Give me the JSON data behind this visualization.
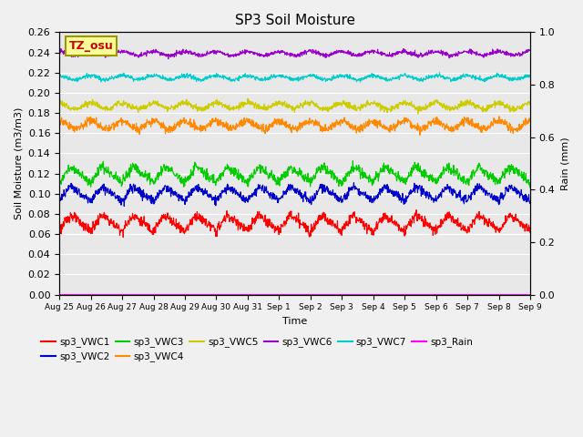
{
  "title": "SP3 Soil Moisture",
  "xlabel": "Time",
  "ylabel_left": "Soil Moisture (m3/m3)",
  "ylabel_right": "Rain (mm)",
  "ylim_left": [
    0.0,
    0.26
  ],
  "ylim_right": [
    0.0,
    1.0
  ],
  "background_color": "#f0f0f0",
  "plot_bg_color": "#e8e8e8",
  "series": [
    {
      "name": "sp3_VWC1",
      "color": "#ff0000",
      "mean": 0.071,
      "amplitude": 0.008,
      "sharp": true
    },
    {
      "name": "sp3_VWC2",
      "color": "#0000cc",
      "mean": 0.1,
      "amplitude": 0.007,
      "sharp": true
    },
    {
      "name": "sp3_VWC3",
      "color": "#00cc00",
      "mean": 0.119,
      "amplitude": 0.008,
      "sharp": true
    },
    {
      "name": "sp3_VWC4",
      "color": "#ff8800",
      "mean": 0.168,
      "amplitude": 0.004,
      "sharp": false
    },
    {
      "name": "sp3_VWC5",
      "color": "#cccc00",
      "mean": 0.187,
      "amplitude": 0.003,
      "sharp": false
    },
    {
      "name": "sp3_VWC6",
      "color": "#9900cc",
      "mean": 0.239,
      "amplitude": 0.002,
      "sharp": false
    },
    {
      "name": "sp3_VWC7",
      "color": "#00cccc",
      "mean": 0.215,
      "amplitude": 0.002,
      "sharp": false
    }
  ],
  "rain": {
    "name": "sp3_Rain",
    "color": "#ff00ff"
  },
  "n_days": 15,
  "xtick_labels": [
    "Aug 25",
    "Aug 26",
    "Aug 27",
    "Aug 28",
    "Aug 29",
    "Aug 30",
    "Aug 31",
    "Sep 1",
    "Sep 2",
    "Sep 3",
    "Sep 4",
    "Sep 5",
    "Sep 6",
    "Sep 7",
    "Sep 8",
    "Sep 9"
  ],
  "legend_entries": [
    {
      "label": "sp3_VWC1",
      "color": "#ff0000"
    },
    {
      "label": "sp3_VWC2",
      "color": "#0000cc"
    },
    {
      "label": "sp3_VWC3",
      "color": "#00cc00"
    },
    {
      "label": "sp3_VWC4",
      "color": "#ff8800"
    },
    {
      "label": "sp3_VWC5",
      "color": "#cccc00"
    },
    {
      "label": "sp3_VWC6",
      "color": "#9900cc"
    },
    {
      "label": "sp3_VWC7",
      "color": "#00cccc"
    },
    {
      "label": "sp3_Rain",
      "color": "#ff00ff"
    }
  ],
  "annotation_text": "TZ_osu",
  "annotation_color": "#cc0000",
  "annotation_box_facecolor": "#ffff99",
  "annotation_box_edgecolor": "#999900"
}
